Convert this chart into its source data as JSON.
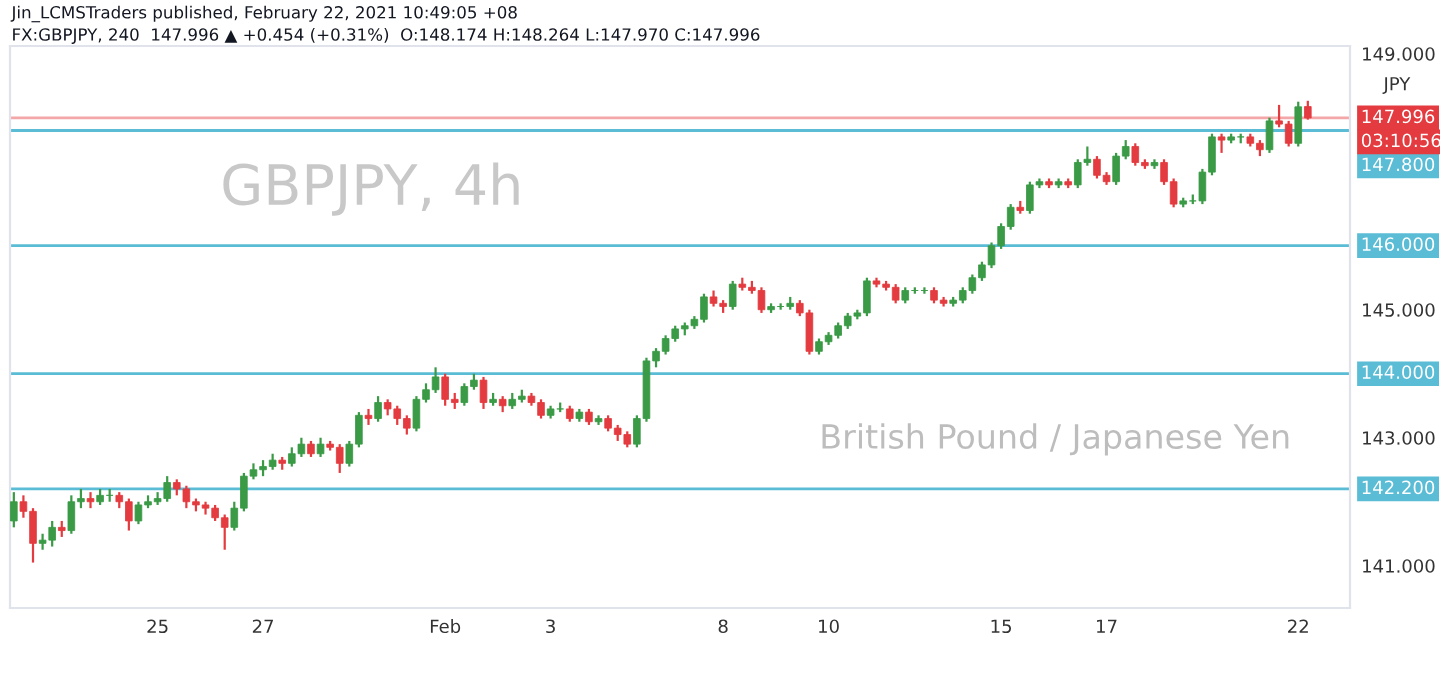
{
  "chart_data": {
    "type": "candlestick",
    "title": "Jin_LCMSTraders published, February 22, 2021 10:49:05 +08",
    "subtitle": "FX:GBPJPY, 240  147.996 ▲ +0.454 (+0.31%)  O:148.174 H:148.264 L:147.970 C:147.996",
    "annotations": [
      "GBPJPY, 4h",
      "British Pound / Japanese Yen",
      "JPY",
      "03:10:56"
    ],
    "categories": [
      null,
      null,
      null,
      null,
      null,
      null,
      null,
      null,
      null,
      null,
      null,
      null,
      null,
      null,
      null,
      "25",
      null,
      null,
      null,
      null,
      null,
      null,
      null,
      null,
      null,
      null,
      "27",
      null,
      null,
      null,
      null,
      null,
      null,
      null,
      null,
      null,
      null,
      null,
      null,
      null,
      null,
      null,
      null,
      null,
      null,
      "Feb",
      null,
      null,
      null,
      null,
      null,
      null,
      null,
      null,
      null,
      null,
      "3",
      null,
      null,
      null,
      null,
      null,
      null,
      null,
      null,
      null,
      null,
      null,
      null,
      null,
      null,
      null,
      null,
      null,
      "8",
      null,
      null,
      null,
      null,
      null,
      null,
      null,
      null,
      null,
      null,
      "10",
      null,
      null,
      null,
      null,
      null,
      null,
      null,
      null,
      null,
      null,
      null,
      null,
      null,
      null,
      null,
      null,
      null,
      "15",
      null,
      null,
      null,
      null,
      null,
      null,
      null,
      null,
      null,
      null,
      "17",
      null,
      null,
      null,
      null,
      null,
      null,
      null,
      null,
      null,
      null,
      null,
      null,
      null,
      null,
      null,
      null,
      null,
      null,
      null,
      "22",
      null
    ],
    "ohlc": [
      [
        141.7,
        142.15,
        141.6,
        142.0
      ],
      [
        142.0,
        142.1,
        141.75,
        141.85
      ],
      [
        141.85,
        141.9,
        141.05,
        141.35
      ],
      [
        141.35,
        141.5,
        141.25,
        141.4
      ],
      [
        141.4,
        141.7,
        141.3,
        141.6
      ],
      [
        141.6,
        141.7,
        141.45,
        141.55
      ],
      [
        141.55,
        142.1,
        141.5,
        142.0
      ],
      [
        142.0,
        142.2,
        141.9,
        142.05
      ],
      [
        142.05,
        142.15,
        141.9,
        142.0
      ],
      [
        142.0,
        142.2,
        141.95,
        142.1
      ],
      [
        142.1,
        142.2,
        142.0,
        142.1
      ],
      [
        142.1,
        142.15,
        141.9,
        142.0
      ],
      [
        142.0,
        142.05,
        141.55,
        141.7
      ],
      [
        141.7,
        142.0,
        141.65,
        141.95
      ],
      [
        141.95,
        142.1,
        141.9,
        142.0
      ],
      [
        142.0,
        142.15,
        141.95,
        142.05
      ],
      [
        142.05,
        142.4,
        142.0,
        142.3
      ],
      [
        142.3,
        142.35,
        142.1,
        142.2
      ],
      [
        142.2,
        142.25,
        141.9,
        142.0
      ],
      [
        142.0,
        142.05,
        141.85,
        141.95
      ],
      [
        141.95,
        142.0,
        141.8,
        141.9
      ],
      [
        141.9,
        141.95,
        141.7,
        141.75
      ],
      [
        141.75,
        141.8,
        141.25,
        141.6
      ],
      [
        141.6,
        142.0,
        141.55,
        141.9
      ],
      [
        141.9,
        142.45,
        141.85,
        142.4
      ],
      [
        142.4,
        142.6,
        142.35,
        142.5
      ],
      [
        142.5,
        142.65,
        142.4,
        142.55
      ],
      [
        142.55,
        142.75,
        142.5,
        142.65
      ],
      [
        142.65,
        142.7,
        142.5,
        142.6
      ],
      [
        142.6,
        142.85,
        142.55,
        142.75
      ],
      [
        142.75,
        143.0,
        142.7,
        142.9
      ],
      [
        142.9,
        142.95,
        142.7,
        142.75
      ],
      [
        142.75,
        143.0,
        142.7,
        142.9
      ],
      [
        142.9,
        142.95,
        142.8,
        142.85
      ],
      [
        142.85,
        142.9,
        142.45,
        142.6
      ],
      [
        142.6,
        142.95,
        142.55,
        142.9
      ],
      [
        142.9,
        143.4,
        142.85,
        143.35
      ],
      [
        143.35,
        143.45,
        143.2,
        143.3
      ],
      [
        143.3,
        143.65,
        143.25,
        143.55
      ],
      [
        143.55,
        143.6,
        143.35,
        143.45
      ],
      [
        143.45,
        143.5,
        143.2,
        143.3
      ],
      [
        143.3,
        143.35,
        143.05,
        143.15
      ],
      [
        143.15,
        143.65,
        143.1,
        143.6
      ],
      [
        143.6,
        143.85,
        143.55,
        143.75
      ],
      [
        143.75,
        144.1,
        143.7,
        143.95
      ],
      [
        143.95,
        144.0,
        143.5,
        143.6
      ],
      [
        143.6,
        143.7,
        143.45,
        143.55
      ],
      [
        143.55,
        143.85,
        143.5,
        143.8
      ],
      [
        143.8,
        144.0,
        143.75,
        143.9
      ],
      [
        143.9,
        143.95,
        143.45,
        143.55
      ],
      [
        143.55,
        143.7,
        143.5,
        143.6
      ],
      [
        143.6,
        143.65,
        143.4,
        143.5
      ],
      [
        143.5,
        143.7,
        143.45,
        143.6
      ],
      [
        143.6,
        143.75,
        143.55,
        143.65
      ],
      [
        143.65,
        143.7,
        143.5,
        143.55
      ],
      [
        143.55,
        143.6,
        143.3,
        143.35
      ],
      [
        143.35,
        143.5,
        143.3,
        143.45
      ],
      [
        143.45,
        143.55,
        143.4,
        143.45
      ],
      [
        143.45,
        143.5,
        143.25,
        143.3
      ],
      [
        143.3,
        143.45,
        143.25,
        143.4
      ],
      [
        143.4,
        143.45,
        143.2,
        143.25
      ],
      [
        143.25,
        143.35,
        143.2,
        143.3
      ],
      [
        143.3,
        143.35,
        143.1,
        143.15
      ],
      [
        143.15,
        143.2,
        142.95,
        143.05
      ],
      [
        143.05,
        143.1,
        142.85,
        142.9
      ],
      [
        142.9,
        143.35,
        142.85,
        143.3
      ],
      [
        143.3,
        144.25,
        143.25,
        144.2
      ],
      [
        144.2,
        144.4,
        144.1,
        144.35
      ],
      [
        144.35,
        144.6,
        144.3,
        144.55
      ],
      [
        144.55,
        144.75,
        144.5,
        144.7
      ],
      [
        144.7,
        144.8,
        144.6,
        144.75
      ],
      [
        144.75,
        144.9,
        144.7,
        144.85
      ],
      [
        144.85,
        145.25,
        144.8,
        145.2
      ],
      [
        145.2,
        145.3,
        145.05,
        145.1
      ],
      [
        145.1,
        145.15,
        144.95,
        145.05
      ],
      [
        145.05,
        145.45,
        145.0,
        145.4
      ],
      [
        145.4,
        145.5,
        145.3,
        145.35
      ],
      [
        145.35,
        145.45,
        145.25,
        145.3
      ],
      [
        145.3,
        145.35,
        144.95,
        145.0
      ],
      [
        145.0,
        145.1,
        144.95,
        145.05
      ],
      [
        145.05,
        145.1,
        145.0,
        145.05
      ],
      [
        145.05,
        145.2,
        145.0,
        145.1
      ],
      [
        145.1,
        145.15,
        144.9,
        144.95
      ],
      [
        144.95,
        145.0,
        144.3,
        144.35
      ],
      [
        144.35,
        144.55,
        144.3,
        144.5
      ],
      [
        144.5,
        144.65,
        144.45,
        144.6
      ],
      [
        144.6,
        144.8,
        144.55,
        144.75
      ],
      [
        144.75,
        144.95,
        144.7,
        144.9
      ],
      [
        144.9,
        145.0,
        144.85,
        144.95
      ],
      [
        144.95,
        145.5,
        144.9,
        145.45
      ],
      [
        145.45,
        145.5,
        145.35,
        145.4
      ],
      [
        145.4,
        145.45,
        145.3,
        145.35
      ],
      [
        145.35,
        145.4,
        145.1,
        145.15
      ],
      [
        145.15,
        145.35,
        145.1,
        145.3
      ],
      [
        145.3,
        145.35,
        145.25,
        145.3
      ],
      [
        145.3,
        145.35,
        145.25,
        145.3
      ],
      [
        145.3,
        145.35,
        145.1,
        145.15
      ],
      [
        145.15,
        145.2,
        145.05,
        145.1
      ],
      [
        145.1,
        145.2,
        145.05,
        145.15
      ],
      [
        145.15,
        145.35,
        145.1,
        145.3
      ],
      [
        145.3,
        145.55,
        145.25,
        145.5
      ],
      [
        145.5,
        145.75,
        145.45,
        145.7
      ],
      [
        145.7,
        146.05,
        145.65,
        146.0
      ],
      [
        146.0,
        146.35,
        145.95,
        146.3
      ],
      [
        146.3,
        146.65,
        146.25,
        146.6
      ],
      [
        146.6,
        146.7,
        146.5,
        146.55
      ],
      [
        146.55,
        147.0,
        146.5,
        146.95
      ],
      [
        146.95,
        147.05,
        146.9,
        147.0
      ],
      [
        147.0,
        147.05,
        146.9,
        146.95
      ],
      [
        146.95,
        147.05,
        146.9,
        147.0
      ],
      [
        147.0,
        147.05,
        146.9,
        146.95
      ],
      [
        146.95,
        147.35,
        146.9,
        147.3
      ],
      [
        147.3,
        147.55,
        147.25,
        147.35
      ],
      [
        147.35,
        147.4,
        147.05,
        147.1
      ],
      [
        147.1,
        147.15,
        146.95,
        147.0
      ],
      [
        147.0,
        147.45,
        146.95,
        147.4
      ],
      [
        147.4,
        147.65,
        147.35,
        147.55
      ],
      [
        147.55,
        147.6,
        147.25,
        147.3
      ],
      [
        147.3,
        147.35,
        147.2,
        147.25
      ],
      [
        147.25,
        147.35,
        147.2,
        147.3
      ],
      [
        147.3,
        147.35,
        146.95,
        147.0
      ],
      [
        147.0,
        147.05,
        146.6,
        146.65
      ],
      [
        146.65,
        146.75,
        146.6,
        146.7
      ],
      [
        146.7,
        146.8,
        146.65,
        146.7
      ],
      [
        146.7,
        147.2,
        146.65,
        147.15
      ],
      [
        147.15,
        147.75,
        147.1,
        147.7
      ],
      [
        147.7,
        147.75,
        147.45,
        147.65
      ],
      [
        147.65,
        147.75,
        147.6,
        147.7
      ],
      [
        147.7,
        147.75,
        147.6,
        147.7
      ],
      [
        147.7,
        147.75,
        147.55,
        147.6
      ],
      [
        147.6,
        147.65,
        147.4,
        147.5
      ],
      [
        147.5,
        148.0,
        147.45,
        147.95
      ],
      [
        147.95,
        148.2,
        147.85,
        147.9
      ],
      [
        147.9,
        147.95,
        147.55,
        147.6
      ],
      [
        147.6,
        148.25,
        147.55,
        148.17
      ],
      [
        148.174,
        148.264,
        147.97,
        147.996
      ]
    ],
    "colors": [
      "#3a9a46",
      "#e33b3f",
      "#e33b3f",
      "#3a9a46",
      "#3a9a46",
      "#e33b3f",
      "#3a9a46",
      "#3a9a46",
      "#e33b3f",
      "#3a9a46",
      "#3a9a46",
      "#e33b3f",
      "#e33b3f",
      "#3a9a46",
      "#3a9a46",
      "#3a9a46",
      "#3a9a46",
      "#e33b3f",
      "#e33b3f",
      "#e33b3f",
      "#e33b3f",
      "#e33b3f",
      "#e33b3f",
      "#3a9a46",
      "#3a9a46",
      "#3a9a46",
      "#3a9a46",
      "#3a9a46",
      "#e33b3f",
      "#3a9a46",
      "#3a9a46",
      "#e33b3f",
      "#3a9a46",
      "#e33b3f",
      "#e33b3f",
      "#3a9a46",
      "#3a9a46",
      "#e33b3f",
      "#3a9a46",
      "#e33b3f",
      "#e33b3f",
      "#e33b3f",
      "#3a9a46",
      "#3a9a46",
      "#3a9a46",
      "#e33b3f",
      "#e33b3f",
      "#3a9a46",
      "#3a9a46",
      "#e33b3f",
      "#3a9a46",
      "#e33b3f",
      "#3a9a46",
      "#3a9a46",
      "#e33b3f",
      "#e33b3f",
      "#3a9a46",
      "#3a9a46",
      "#e33b3f",
      "#3a9a46",
      "#e33b3f",
      "#3a9a46",
      "#e33b3f",
      "#e33b3f",
      "#e33b3f",
      "#3a9a46",
      "#3a9a46",
      "#3a9a46",
      "#3a9a46",
      "#3a9a46",
      "#3a9a46",
      "#3a9a46",
      "#3a9a46",
      "#e33b3f",
      "#e33b3f",
      "#3a9a46",
      "#e33b3f",
      "#e33b3f",
      "#e33b3f",
      "#3a9a46",
      "#3a9a46",
      "#3a9a46",
      "#e33b3f",
      "#e33b3f",
      "#3a9a46",
      "#3a9a46",
      "#3a9a46",
      "#3a9a46",
      "#3a9a46",
      "#3a9a46",
      "#e33b3f",
      "#e33b3f",
      "#e33b3f",
      "#3a9a46",
      "#3a9a46",
      "#3a9a46",
      "#e33b3f",
      "#e33b3f",
      "#3a9a46",
      "#3a9a46",
      "#3a9a46",
      "#3a9a46",
      "#3a9a46",
      "#3a9a46",
      "#3a9a46",
      "#e33b3f",
      "#3a9a46",
      "#3a9a46",
      "#e33b3f",
      "#3a9a46",
      "#e33b3f",
      "#3a9a46",
      "#3a9a46",
      "#e33b3f",
      "#e33b3f",
      "#3a9a46",
      "#3a9a46",
      "#e33b3f",
      "#e33b3f",
      "#3a9a46",
      "#e33b3f",
      "#e33b3f",
      "#3a9a46",
      "#3a9a46",
      "#3a9a46",
      "#3a9a46",
      "#e33b3f",
      "#3a9a46",
      "#3a9a46",
      "#e33b3f",
      "#e33b3f",
      "#3a9a46",
      "#e33b3f",
      "#e33b3f",
      "#3a9a46",
      "#e33b3f"
    ],
    "ylim": [
      140.34,
      149.12
    ],
    "yticks": [
      {
        "value": 141,
        "label": "141.000"
      },
      {
        "value": 143,
        "label": "143.000"
      },
      {
        "value": 145,
        "label": "145.000"
      },
      {
        "value": 149,
        "label": "149.000"
      }
    ],
    "ref_lines": [
      {
        "axis": "y",
        "value": 147.996,
        "label": "147.996",
        "color": "#f4a7a9"
      },
      {
        "axis": "y",
        "value": 147.8,
        "label": "147.800",
        "color": "#5bbcd6"
      },
      {
        "axis": "y",
        "value": 146,
        "label": "146.000",
        "color": "#5bbcd6"
      },
      {
        "axis": "y",
        "value": 144,
        "label": "144.000",
        "color": "#5bbcd6"
      },
      {
        "axis": "y",
        "value": 142.2,
        "label": "142.200",
        "color": "#5bbcd6"
      }
    ],
    "grid": false
  }
}
